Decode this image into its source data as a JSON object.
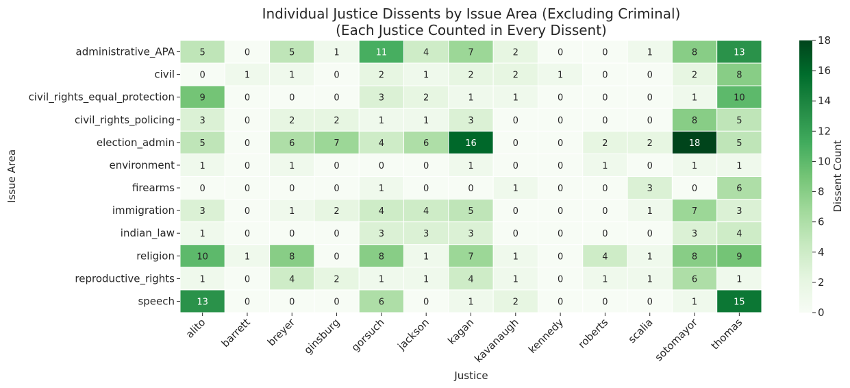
{
  "chart_data": {
    "type": "heatmap",
    "title_line1": "Individual Justice Dissents by Issue Area (Excluding Criminal)",
    "title_line2": "(Each Justice Counted in Every Dissent)",
    "xlabel": "Justice",
    "ylabel": "Issue Area",
    "colorbar_label": "Dissent Count",
    "color_range": [
      0,
      18
    ],
    "colorbar_ticks": [
      "0",
      "2",
      "4",
      "6",
      "8",
      "10",
      "12",
      "14",
      "16",
      "18"
    ],
    "colormap": "Greens",
    "x": [
      "alito",
      "barrett",
      "breyer",
      "ginsburg",
      "gorsuch",
      "jackson",
      "kagan",
      "kavanaugh",
      "kennedy",
      "roberts",
      "scalia",
      "sotomayor",
      "thomas"
    ],
    "y": [
      "administrative_APA",
      "civil",
      "civil_rights_equal_protection",
      "civil_rights_policing",
      "election_admin",
      "environment",
      "firearms",
      "immigration",
      "indian_law",
      "religion",
      "reproductive_rights",
      "speech"
    ],
    "values": [
      [
        5,
        0,
        5,
        1,
        11,
        4,
        7,
        2,
        0,
        0,
        1,
        8,
        13
      ],
      [
        0,
        1,
        1,
        0,
        2,
        1,
        2,
        2,
        1,
        0,
        0,
        2,
        8
      ],
      [
        9,
        0,
        0,
        0,
        3,
        2,
        1,
        1,
        0,
        0,
        0,
        1,
        10
      ],
      [
        3,
        0,
        2,
        2,
        1,
        1,
        3,
        0,
        0,
        0,
        0,
        8,
        5
      ],
      [
        5,
        0,
        6,
        7,
        4,
        6,
        16,
        0,
        0,
        2,
        2,
        18,
        5
      ],
      [
        1,
        0,
        1,
        0,
        0,
        0,
        1,
        0,
        0,
        1,
        0,
        1,
        1
      ],
      [
        0,
        0,
        0,
        0,
        1,
        0,
        0,
        1,
        0,
        0,
        3,
        0,
        6
      ],
      [
        3,
        0,
        1,
        2,
        4,
        4,
        5,
        0,
        0,
        0,
        1,
        7,
        3
      ],
      [
        1,
        0,
        0,
        0,
        3,
        3,
        3,
        0,
        0,
        0,
        0,
        3,
        4
      ],
      [
        10,
        1,
        8,
        0,
        8,
        1,
        7,
        1,
        0,
        4,
        1,
        8,
        9
      ],
      [
        1,
        0,
        4,
        2,
        1,
        1,
        4,
        1,
        0,
        1,
        1,
        6,
        1
      ],
      [
        13,
        0,
        0,
        0,
        6,
        0,
        1,
        2,
        0,
        0,
        0,
        1,
        15
      ]
    ]
  }
}
